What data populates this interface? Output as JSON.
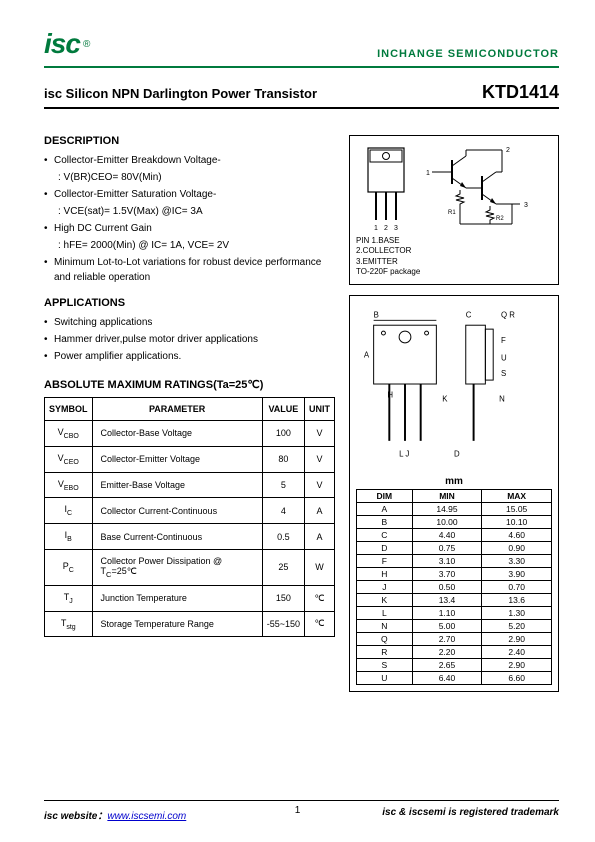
{
  "header": {
    "logo_text": "isc",
    "reg": "®",
    "brand": "INCHANGE SEMICONDUCTOR"
  },
  "title": {
    "main": "isc Silicon NPN Darlington Power Transistor",
    "part": "KTD1414"
  },
  "description": {
    "heading": "DESCRIPTION",
    "items": [
      "Collector-Emitter Breakdown Voltage-",
      ": V(BR)CEO= 80V(Min)",
      "Collector-Emitter Saturation Voltage-",
      ": VCE(sat)= 1.5V(Max) @IC= 3A",
      "High DC Current Gain",
      ": hFE= 2000(Min) @ IC= 1A, VCE= 2V",
      "Minimum Lot-to-Lot variations for robust device performance and reliable operation"
    ]
  },
  "applications": {
    "heading": "APPLICATIONS",
    "items": [
      "Switching applications",
      "Hammer driver,pulse motor driver applications",
      "Power amplifier applications."
    ]
  },
  "pins": {
    "nums": "1 2 3",
    "lines": [
      "PIN  1.BASE",
      "2.COLLECTOR",
      "3.EMITTER",
      "TO-220F package"
    ]
  },
  "ratings": {
    "heading": "ABSOLUTE MAXIMUM RATINGS(Ta=25℃)",
    "columns": [
      "SYMBOL",
      "PARAMETER",
      "VALUE",
      "UNIT"
    ],
    "rows": [
      {
        "sym": "V<sub>CBO</sub>",
        "param": "Collector-Base Voltage",
        "val": "100",
        "unit": "V"
      },
      {
        "sym": "V<sub>CEO</sub>",
        "param": "Collector-Emitter Voltage",
        "val": "80",
        "unit": "V"
      },
      {
        "sym": "V<sub>EBO</sub>",
        "param": "Emitter-Base Voltage",
        "val": "5",
        "unit": "V"
      },
      {
        "sym": "I<sub>C</sub>",
        "param": "Collector Current-Continuous",
        "val": "4",
        "unit": "A"
      },
      {
        "sym": "I<sub>B</sub>",
        "param": "Base Current-Continuous",
        "val": "0.5",
        "unit": "A"
      },
      {
        "sym": "P<sub>C</sub>",
        "param": "Collector Power Dissipation @ T<sub>C</sub>=25℃",
        "val": "25",
        "unit": "W"
      },
      {
        "sym": "T<sub>J</sub>",
        "param": "Junction Temperature",
        "val": "150",
        "unit": "℃"
      },
      {
        "sym": "T<sub>stg</sub>",
        "param": "Storage Temperature Range",
        "val": "-55~150",
        "unit": "℃"
      }
    ]
  },
  "dimensions": {
    "unit_label": "mm",
    "columns": [
      "DIM",
      "MIN",
      "MAX"
    ],
    "rows": [
      [
        "A",
        "14.95",
        "15.05"
      ],
      [
        "B",
        "10.00",
        "10.10"
      ],
      [
        "C",
        "4.40",
        "4.60"
      ],
      [
        "D",
        "0.75",
        "0.90"
      ],
      [
        "F",
        "3.10",
        "3.30"
      ],
      [
        "H",
        "3.70",
        "3.90"
      ],
      [
        "J",
        "0.50",
        "0.70"
      ],
      [
        "K",
        "13.4",
        "13.6"
      ],
      [
        "L",
        "1.10",
        "1.30"
      ],
      [
        "N",
        "5.00",
        "5.20"
      ],
      [
        "Q",
        "2.70",
        "2.90"
      ],
      [
        "R",
        "2.20",
        "2.40"
      ],
      [
        "S",
        "2.65",
        "2.90"
      ],
      [
        "U",
        "6.40",
        "6.60"
      ]
    ]
  },
  "footer": {
    "left_label": "isc website：",
    "url": "www.iscsemi.com",
    "right": "isc & iscsemi is registered trademark",
    "page": "1"
  },
  "colors": {
    "green": "#007a3d",
    "black": "#000000"
  }
}
